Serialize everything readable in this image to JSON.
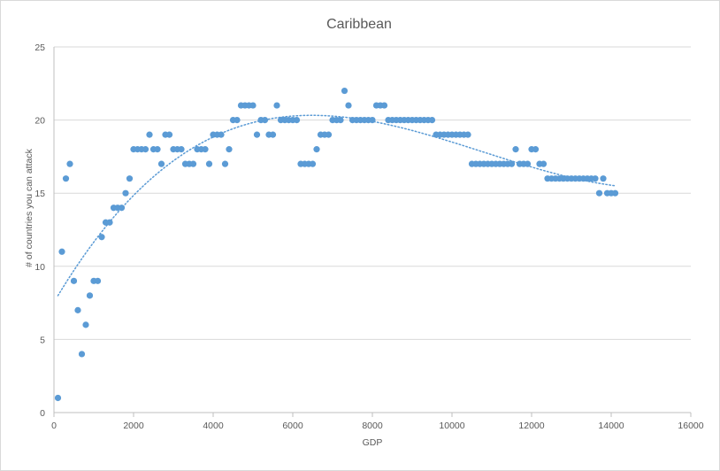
{
  "colors": {
    "marker": "#5B9BD5",
    "gridline": "#D9D9D9",
    "axis": "#BFBFBF",
    "text": "#595959",
    "trendline": "#5B9BD5"
  },
  "chart_data": {
    "type": "scatter",
    "title": "Caribbean",
    "xlabel": "GDP",
    "ylabel": "# of countries you can attack",
    "xlim": [
      0,
      16000
    ],
    "ylim": [
      0,
      25
    ],
    "x_ticks": [
      "0",
      "2000",
      "4000",
      "6000",
      "8000",
      "10000",
      "12000",
      "14000",
      "16000"
    ],
    "y_ticks": [
      "0",
      "5",
      "10",
      "15",
      "20",
      "25"
    ],
    "grid": "horizontal",
    "legend": "none",
    "trendline": {
      "type": "polynomial",
      "style": "dotted",
      "x_from": 100,
      "x_to": 14100
    },
    "points": [
      [
        100,
        1
      ],
      [
        200,
        11
      ],
      [
        300,
        16
      ],
      [
        400,
        17
      ],
      [
        500,
        9
      ],
      [
        600,
        7
      ],
      [
        700,
        4
      ],
      [
        800,
        6
      ],
      [
        900,
        8
      ],
      [
        1000,
        9
      ],
      [
        1100,
        9
      ],
      [
        1200,
        12
      ],
      [
        1300,
        13
      ],
      [
        1400,
        13
      ],
      [
        1500,
        14
      ],
      [
        1600,
        14
      ],
      [
        1700,
        14
      ],
      [
        1800,
        15
      ],
      [
        1900,
        16
      ],
      [
        2000,
        18
      ],
      [
        2100,
        18
      ],
      [
        2200,
        18
      ],
      [
        2300,
        18
      ],
      [
        2400,
        19
      ],
      [
        2500,
        18
      ],
      [
        2600,
        18
      ],
      [
        2700,
        17
      ],
      [
        2800,
        19
      ],
      [
        2900,
        19
      ],
      [
        3000,
        18
      ],
      [
        3100,
        18
      ],
      [
        3200,
        18
      ],
      [
        3300,
        17
      ],
      [
        3400,
        17
      ],
      [
        3500,
        17
      ],
      [
        3600,
        18
      ],
      [
        3700,
        18
      ],
      [
        3800,
        18
      ],
      [
        3900,
        17
      ],
      [
        4000,
        19
      ],
      [
        4100,
        19
      ],
      [
        4200,
        19
      ],
      [
        4300,
        17
      ],
      [
        4400,
        18
      ],
      [
        4500,
        20
      ],
      [
        4600,
        20
      ],
      [
        4700,
        21
      ],
      [
        4800,
        21
      ],
      [
        4900,
        21
      ],
      [
        5000,
        21
      ],
      [
        5100,
        19
      ],
      [
        5200,
        20
      ],
      [
        5300,
        20
      ],
      [
        5400,
        19
      ],
      [
        5500,
        19
      ],
      [
        5600,
        21
      ],
      [
        5700,
        20
      ],
      [
        5800,
        20
      ],
      [
        5900,
        20
      ],
      [
        6000,
        20
      ],
      [
        6100,
        20
      ],
      [
        6200,
        17
      ],
      [
        6300,
        17
      ],
      [
        6400,
        17
      ],
      [
        6500,
        17
      ],
      [
        6600,
        18
      ],
      [
        6700,
        19
      ],
      [
        6800,
        19
      ],
      [
        6900,
        19
      ],
      [
        7000,
        20
      ],
      [
        7100,
        20
      ],
      [
        7200,
        20
      ],
      [
        7300,
        22
      ],
      [
        7400,
        21
      ],
      [
        7500,
        20
      ],
      [
        7600,
        20
      ],
      [
        7700,
        20
      ],
      [
        7800,
        20
      ],
      [
        7900,
        20
      ],
      [
        8000,
        20
      ],
      [
        8100,
        21
      ],
      [
        8200,
        21
      ],
      [
        8300,
        21
      ],
      [
        8400,
        20
      ],
      [
        8500,
        20
      ],
      [
        8600,
        20
      ],
      [
        8700,
        20
      ],
      [
        8800,
        20
      ],
      [
        8900,
        20
      ],
      [
        9000,
        20
      ],
      [
        9100,
        20
      ],
      [
        9200,
        20
      ],
      [
        9300,
        20
      ],
      [
        9400,
        20
      ],
      [
        9500,
        20
      ],
      [
        9600,
        19
      ],
      [
        9700,
        19
      ],
      [
        9800,
        19
      ],
      [
        9900,
        19
      ],
      [
        10000,
        19
      ],
      [
        10100,
        19
      ],
      [
        10200,
        19
      ],
      [
        10300,
        19
      ],
      [
        10400,
        19
      ],
      [
        10500,
        17
      ],
      [
        10600,
        17
      ],
      [
        10700,
        17
      ],
      [
        10800,
        17
      ],
      [
        10900,
        17
      ],
      [
        11000,
        17
      ],
      [
        11100,
        17
      ],
      [
        11200,
        17
      ],
      [
        11300,
        17
      ],
      [
        11400,
        17
      ],
      [
        11500,
        17
      ],
      [
        11600,
        18
      ],
      [
        11700,
        17
      ],
      [
        11800,
        17
      ],
      [
        11900,
        17
      ],
      [
        12000,
        18
      ],
      [
        12100,
        18
      ],
      [
        12200,
        17
      ],
      [
        12300,
        17
      ],
      [
        12400,
        16
      ],
      [
        12500,
        16
      ],
      [
        12600,
        16
      ],
      [
        12700,
        16
      ],
      [
        12800,
        16
      ],
      [
        12900,
        16
      ],
      [
        13000,
        16
      ],
      [
        13100,
        16
      ],
      [
        13200,
        16
      ],
      [
        13300,
        16
      ],
      [
        13400,
        16
      ],
      [
        13500,
        16
      ],
      [
        13600,
        16
      ],
      [
        13700,
        15
      ],
      [
        13800,
        16
      ],
      [
        13900,
        15
      ],
      [
        14000,
        15
      ],
      [
        14100,
        15
      ]
    ]
  }
}
